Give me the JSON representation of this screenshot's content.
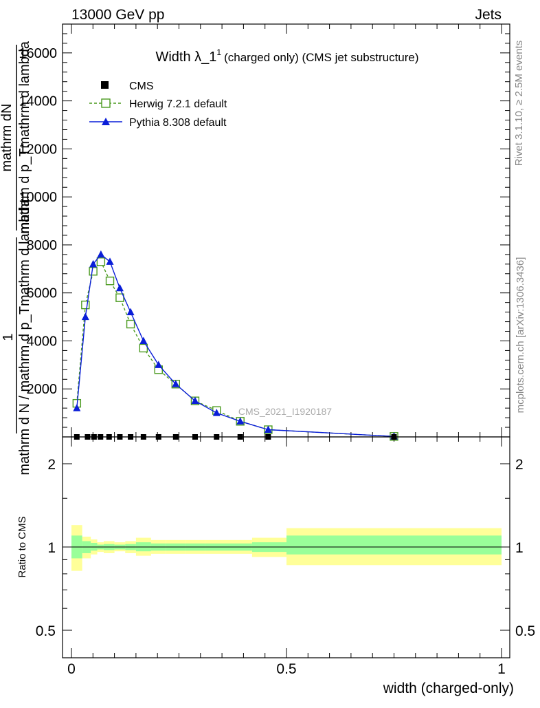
{
  "header": {
    "left": "13000 GeV pp",
    "right": "Jets"
  },
  "side": {
    "rivet": "Rivet 3.1.10, ≥ 2.5M events",
    "mcplots": "mcplots.cern.ch [arXiv:1306.3436]"
  },
  "colors": {
    "cms": "#000000",
    "herwig": "#4a9a1e",
    "pythia": "#0a1ed8",
    "band_outer": "#ffff99",
    "band_inner": "#99ff99"
  },
  "chart_data": [
    {
      "type": "line",
      "title_main": "Width λ_1",
      "title_sup": "1",
      "title_rest": "(charged only) (CMS jet substructure)",
      "ylabel_top_a": "mathrm dN",
      "ylabel_top_b": "mathrm d p_Tmathrm d lambda",
      "ylabel_one": "1",
      "ylabel_bot": "mathrm d N / mathrm d p_Tmathrm d lambda",
      "watermark": "CMS_2021_I1920187",
      "xlim": [
        -0.02,
        1.02
      ],
      "ylim": [
        0,
        17200
      ],
      "yticks": [
        2000,
        4000,
        6000,
        8000,
        10000,
        12000,
        14000,
        16000
      ],
      "ytick_labels": [
        "2000",
        "4000",
        "6000",
        "8000",
        "10000",
        "12000",
        "14000",
        "16000"
      ],
      "legend_position": "top-left",
      "series": [
        {
          "name": "CMS",
          "x": [
            0.0125,
            0.0375,
            0.0525,
            0.0675,
            0.0875,
            0.1125,
            0.1375,
            0.1675,
            0.2025,
            0.2425,
            0.2875,
            0.3375,
            0.3925,
            0.4575,
            0.75
          ],
          "y": [
            0,
            0,
            0,
            0,
            0,
            0,
            0,
            0,
            0,
            0,
            0,
            0,
            0,
            0,
            0
          ]
        },
        {
          "name": "Herwig 7.2.1 default",
          "x": [
            0.0125,
            0.0325,
            0.0505,
            0.0685,
            0.0895,
            0.1125,
            0.1375,
            0.1675,
            0.2025,
            0.2425,
            0.2875,
            0.3375,
            0.3925,
            0.4575,
            0.75
          ],
          "y": [
            1400,
            5500,
            6900,
            7300,
            6500,
            5800,
            4700,
            3700,
            2800,
            2200,
            1500,
            1100,
            650,
            300,
            20
          ]
        },
        {
          "name": "Pythia 8.308 default",
          "x": [
            0.0125,
            0.0325,
            0.0505,
            0.0685,
            0.0895,
            0.1125,
            0.1375,
            0.1675,
            0.2025,
            0.2425,
            0.2875,
            0.3375,
            0.3925,
            0.4575,
            0.75
          ],
          "y": [
            1200,
            5000,
            7200,
            7600,
            7300,
            6200,
            5200,
            4000,
            3000,
            2200,
            1500,
            1000,
            650,
            300,
            20
          ]
        }
      ]
    },
    {
      "type": "area",
      "ylabel": "Ratio to CMS",
      "xlabel": "width (charged-only)",
      "reference": 1,
      "xticks": [
        0,
        0.5,
        1
      ],
      "xtick_labels": [
        "0",
        "0.5",
        "1"
      ],
      "yticks": [
        0.5,
        1,
        2
      ],
      "ytick_labels": [
        "0.5",
        "1",
        "2"
      ],
      "bins": [
        0,
        0.025,
        0.045,
        0.06,
        0.075,
        0.1,
        0.125,
        0.15,
        0.185,
        0.22,
        0.265,
        0.31,
        0.365,
        0.42,
        0.5,
        1.0
      ],
      "inner_lo": [
        0.91,
        0.95,
        0.97,
        0.98,
        0.975,
        0.98,
        0.975,
        0.965,
        0.97,
        0.97,
        0.97,
        0.97,
        0.97,
        0.96,
        0.94
      ],
      "inner_hi": [
        1.1,
        1.05,
        1.035,
        1.02,
        1.025,
        1.02,
        1.025,
        1.04,
        1.03,
        1.03,
        1.03,
        1.03,
        1.03,
        1.04,
        1.1
      ],
      "outer_lo": [
        0.82,
        0.91,
        0.94,
        0.96,
        0.95,
        0.965,
        0.95,
        0.93,
        0.945,
        0.945,
        0.945,
        0.945,
        0.945,
        0.92,
        0.86
      ],
      "outer_hi": [
        1.2,
        1.09,
        1.065,
        1.04,
        1.05,
        1.04,
        1.05,
        1.08,
        1.06,
        1.06,
        1.06,
        1.06,
        1.06,
        1.08,
        1.17
      ]
    }
  ]
}
